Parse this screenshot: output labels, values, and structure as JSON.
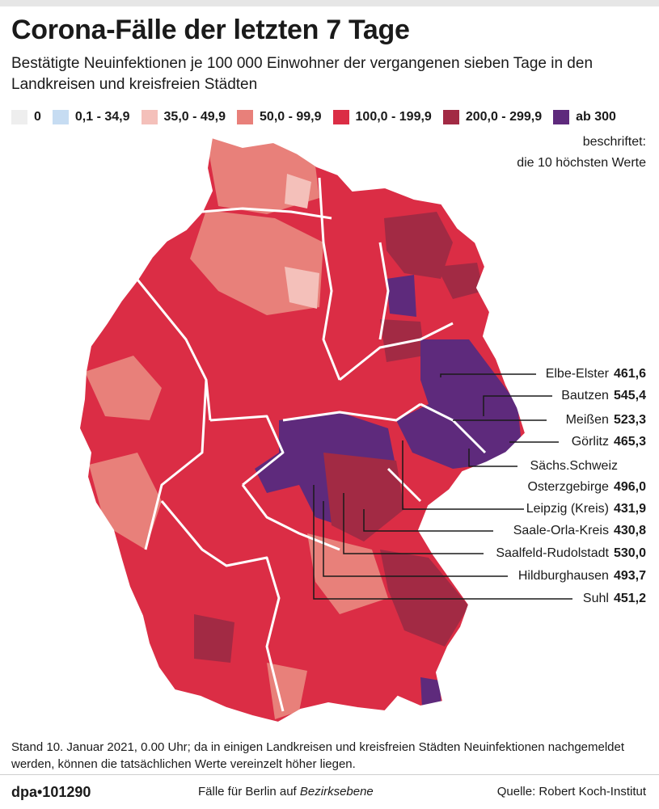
{
  "header": {
    "title": "Corona-Fälle der letzten 7 Tage",
    "subtitle": "Bestätigte Neuinfektionen je 100 000 Einwohner der vergangenen sieben Tage in den Landkreisen und kreisfreien Städten"
  },
  "legend": [
    {
      "label": "0",
      "color": "#eeeeee"
    },
    {
      "label": "0,1 - 34,9",
      "color": "#c6dcf2"
    },
    {
      "label": "35,0 - 49,9",
      "color": "#f4c0ba"
    },
    {
      "label": "50,0 - 99,9",
      "color": "#e8807a"
    },
    {
      "label": "100,0 - 199,9",
      "color": "#db2d45"
    },
    {
      "label": "200,0 - 299,9",
      "color": "#a22a44"
    },
    {
      "label": "ab 300",
      "color": "#5e2a7c"
    }
  ],
  "labeled_note": {
    "line1": "beschriftet:",
    "line2": "die 10 höchsten Werte"
  },
  "callouts": [
    {
      "name": "Elbe-Elster",
      "value": "461,6"
    },
    {
      "name": "Bautzen",
      "value": "545,4"
    },
    {
      "name": "Meißen",
      "value": "523,3"
    },
    {
      "name": "Görlitz",
      "value": "465,3"
    },
    {
      "name": "Sächs.Schweiz",
      "value": ""
    },
    {
      "name": "Osterzgebirge",
      "value": "496,0"
    },
    {
      "name": "Leipzig (Kreis)",
      "value": "431,9"
    },
    {
      "name": "Saale-Orla-Kreis",
      "value": "430,8"
    },
    {
      "name": "Saalfeld-Rudolstadt",
      "value": "530,0"
    },
    {
      "name": "Hildburghausen",
      "value": "493,7"
    },
    {
      "name": "Suhl",
      "value": "451,2"
    }
  ],
  "footnote": "Stand 10. Januar 2021, 0.00 Uhr; da in einigen Landkreisen und kreisfreien Städten Neuinfektionen nachgemeldet werden, können die tatsächlichen Werte vereinzelt höher liegen.",
  "footer": {
    "credit": "dpa•101290",
    "berlin_prefix": "Fälle für Berlin auf ",
    "berlin_emph": "Bezirksebene",
    "source": "Quelle: Robert Koch-Institut"
  }
}
